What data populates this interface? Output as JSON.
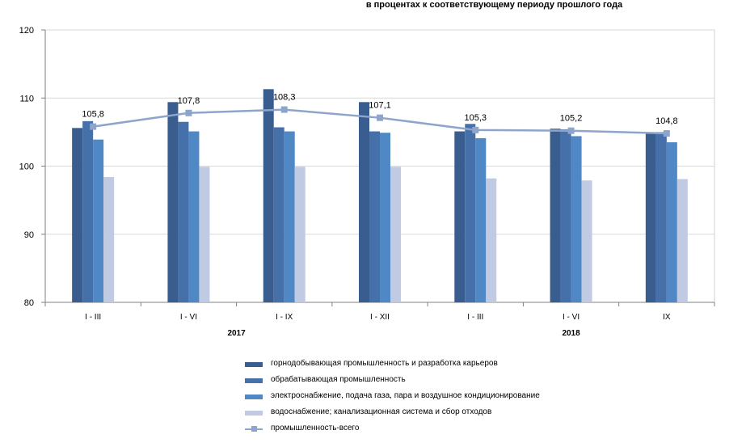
{
  "subtitle": "в процентах к соответствующему периоду прошлого года",
  "chart_data": {
    "type": "bar",
    "categories": [
      "I - III",
      "I - VI",
      "I - IX",
      "I - XII",
      "I - III",
      "I - VI",
      "IX"
    ],
    "year_groups": [
      {
        "label": "2017",
        "from": 0,
        "to": 3
      },
      {
        "label": "2018",
        "from": 4,
        "to": 6
      }
    ],
    "ylim": [
      80,
      120
    ],
    "yticks": [
      80,
      90,
      100,
      110,
      120
    ],
    "grid": true,
    "legend_position": "bottom",
    "series": [
      {
        "name": "горнодобывающая промышленность и разработка карьеров",
        "color": "#3a5d8f",
        "values": [
          105.6,
          109.4,
          111.3,
          109.4,
          105.1,
          105.5,
          104.9
        ]
      },
      {
        "name": "обрабатывающая промышленность",
        "color": "#4670aa",
        "values": [
          106.6,
          106.5,
          105.7,
          105.1,
          106.2,
          105.4,
          105.0
        ]
      },
      {
        "name": "электроснабжение, подача газа, пара и воздушное кондиционирование",
        "color": "#5088c6",
        "values": [
          103.9,
          105.1,
          105.1,
          104.9,
          104.1,
          104.4,
          103.5
        ]
      },
      {
        "name": "водоснабжение; канализационная система и сбор отходов",
        "color": "#c0cbe3",
        "values": [
          98.4,
          99.9,
          99.9,
          99.9,
          98.2,
          97.9,
          98.1
        ]
      }
    ],
    "line_series": {
      "name": "промышленность-всего",
      "color": "#8ea5cb",
      "values": [
        105.8,
        107.8,
        108.3,
        107.1,
        105.3,
        105.2,
        104.8
      ],
      "labels": [
        "105,8",
        "107,8",
        "108,3",
        "107,1",
        "105,3",
        "105,2",
        "104,8"
      ]
    }
  }
}
